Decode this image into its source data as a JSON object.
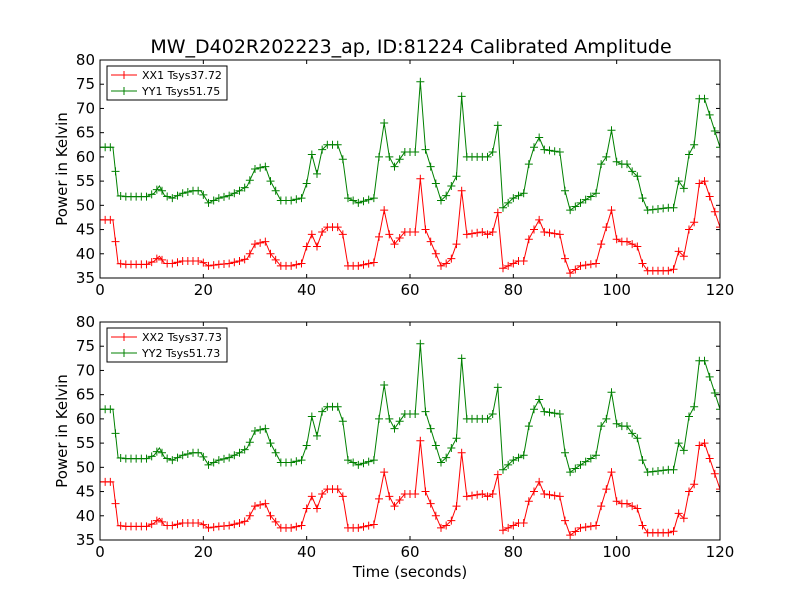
{
  "title": "MW_D402R202223_ap, ID:81224 Calibrated Amplitude",
  "chart_data": [
    {
      "type": "line",
      "title": "MW_D402R202223_ap, ID:81224 Calibrated Amplitude",
      "xlabel": "",
      "ylabel": "Power in Kelvin",
      "xlim": [
        0,
        120
      ],
      "ylim": [
        35,
        80
      ],
      "xticks": [
        "0",
        "20",
        "40",
        "60",
        "80",
        "100",
        "120"
      ],
      "yticks": [
        "35",
        "40",
        "45",
        "50",
        "55",
        "60",
        "65",
        "70",
        "75",
        "80"
      ],
      "grid": false,
      "legend": "upper-left",
      "marker": "+",
      "series": [
        {
          "name": "XX1 Tsys37.72",
          "color": "#ff0000",
          "x": [
            0,
            2.5,
            3.5,
            5,
            9,
            10.5,
            11.5,
            12.5,
            14,
            16,
            18,
            19.5,
            21,
            23,
            25,
            27,
            28.5,
            30,
            32,
            33,
            35,
            37,
            39,
            40,
            41,
            42,
            43,
            44,
            46,
            47,
            48,
            50,
            53,
            54,
            55,
            56,
            57,
            59,
            60,
            61,
            62,
            63,
            66,
            67,
            68,
            69,
            70,
            71,
            74,
            75,
            76,
            77,
            78,
            80,
            81,
            82,
            83,
            84,
            85,
            86,
            89,
            90,
            91,
            93,
            96,
            97,
            98,
            99,
            100,
            101,
            102,
            103,
            104,
            105,
            106,
            110,
            111,
            112,
            113,
            114,
            115,
            116,
            117,
            120
          ],
          "y": [
            47,
            47,
            38,
            37.8,
            37.8,
            38.5,
            39.5,
            38,
            38,
            38.5,
            38.5,
            38.5,
            37.5,
            37.8,
            38,
            38.5,
            39,
            42,
            42.5,
            40,
            37.5,
            37.5,
            38,
            41.5,
            44,
            41.5,
            44.5,
            45.5,
            45.5,
            44,
            37.5,
            37.5,
            38.2,
            43.5,
            49,
            44,
            42,
            44.5,
            44.5,
            44.5,
            55.5,
            45,
            37.5,
            38,
            39,
            42,
            53,
            44,
            44.5,
            44,
            44.5,
            48.5,
            37,
            38,
            38.5,
            38.5,
            43,
            45,
            47,
            44.5,
            44,
            39,
            36,
            37.5,
            38,
            42,
            45.5,
            49,
            43,
            42.5,
            42.5,
            42,
            41.5,
            38,
            36.5,
            36.5,
            36.8,
            40.5,
            39.5,
            45,
            46.5,
            54.5,
            55,
            45.5
          ]
        },
        {
          "name": "YY1 Tsys51.75",
          "color": "#008000",
          "x": [
            0,
            2.5,
            3.5,
            5,
            9,
            10.5,
            11.5,
            12.5,
            14,
            16,
            18,
            19.5,
            21,
            23,
            25,
            27,
            28.5,
            30,
            32,
            33,
            35,
            37,
            39,
            40,
            41,
            42,
            43,
            44,
            46,
            47,
            48,
            50,
            53,
            54,
            55,
            56,
            57,
            59,
            60,
            61,
            62,
            63,
            66,
            67,
            68,
            69,
            70,
            71,
            74,
            75,
            76,
            77,
            78,
            80,
            81,
            82,
            83,
            84,
            85,
            86,
            89,
            90,
            91,
            93,
            96,
            97,
            98,
            99,
            100,
            101,
            102,
            103,
            104,
            105,
            106,
            110,
            111,
            112,
            113,
            114,
            115,
            116,
            117,
            120
          ],
          "y": [
            62,
            62,
            52,
            51.8,
            51.8,
            52.5,
            54,
            52,
            51.5,
            52.5,
            53,
            53,
            50.5,
            51.5,
            52,
            53,
            54,
            57.5,
            58,
            55,
            51,
            51,
            51.5,
            54.5,
            60.5,
            56.5,
            61.5,
            62.5,
            62.5,
            59.5,
            51.5,
            50.5,
            51.5,
            60,
            67,
            60,
            58,
            61,
            61,
            61,
            75.5,
            61.5,
            51,
            52,
            54,
            56,
            72.5,
            60,
            60,
            60,
            61,
            66.5,
            49.5,
            51.5,
            52,
            52.5,
            58.5,
            62,
            64,
            61.5,
            61,
            53,
            49,
            50.5,
            52.5,
            58.5,
            60,
            65.5,
            59,
            58.5,
            58.5,
            57,
            56,
            51.5,
            49,
            49.5,
            49.5,
            55,
            53.5,
            60.5,
            62.5,
            72,
            72,
            62
          ]
        }
      ]
    },
    {
      "type": "line",
      "title": "",
      "xlabel": "Time (seconds)",
      "ylabel": "Power in Kelvin",
      "xlim": [
        0,
        120
      ],
      "ylim": [
        35,
        80
      ],
      "xticks": [
        "0",
        "20",
        "40",
        "60",
        "80",
        "100",
        "120"
      ],
      "yticks": [
        "35",
        "40",
        "45",
        "50",
        "55",
        "60",
        "65",
        "70",
        "75",
        "80"
      ],
      "grid": false,
      "legend": "upper-left",
      "marker": "+",
      "series": [
        {
          "name": "XX2 Tsys37.73",
          "color": "#ff0000",
          "x": [
            0,
            2.5,
            3.5,
            5,
            9,
            10.5,
            11.5,
            12.5,
            14,
            16,
            18,
            19.5,
            21,
            23,
            25,
            27,
            28.5,
            30,
            32,
            33,
            35,
            37,
            39,
            40,
            41,
            42,
            43,
            44,
            46,
            47,
            48,
            50,
            53,
            54,
            55,
            56,
            57,
            59,
            60,
            61,
            62,
            63,
            66,
            67,
            68,
            69,
            70,
            71,
            74,
            75,
            76,
            77,
            78,
            80,
            81,
            82,
            83,
            84,
            85,
            86,
            89,
            90,
            91,
            93,
            96,
            97,
            98,
            99,
            100,
            101,
            102,
            103,
            104,
            105,
            106,
            110,
            111,
            112,
            113,
            114,
            115,
            116,
            117,
            120
          ],
          "y": [
            47,
            47,
            38,
            37.8,
            37.8,
            38.5,
            39.5,
            38,
            38,
            38.5,
            38.5,
            38.5,
            37.5,
            37.8,
            38,
            38.5,
            39,
            42,
            42.5,
            40,
            37.5,
            37.5,
            38,
            41.5,
            44,
            41.5,
            44.5,
            45.5,
            45.5,
            44,
            37.5,
            37.5,
            38.2,
            43.5,
            49,
            44,
            42,
            44.5,
            44.5,
            44.5,
            55.5,
            45,
            37.5,
            38,
            39,
            42,
            53,
            44,
            44.5,
            44,
            44.5,
            48.5,
            37,
            38,
            38.5,
            38.5,
            43,
            45,
            47,
            44.5,
            44,
            39,
            36,
            37.5,
            38,
            42,
            45.5,
            49,
            43,
            42.5,
            42.5,
            42,
            41.5,
            38,
            36.5,
            36.5,
            36.8,
            40.5,
            39.5,
            45,
            46.5,
            54.5,
            55,
            45.5
          ]
        },
        {
          "name": "YY2 Tsys51.73",
          "color": "#008000",
          "x": [
            0,
            2.5,
            3.5,
            5,
            9,
            10.5,
            11.5,
            12.5,
            14,
            16,
            18,
            19.5,
            21,
            23,
            25,
            27,
            28.5,
            30,
            32,
            33,
            35,
            37,
            39,
            40,
            41,
            42,
            43,
            44,
            46,
            47,
            48,
            50,
            53,
            54,
            55,
            56,
            57,
            59,
            60,
            61,
            62,
            63,
            66,
            67,
            68,
            69,
            70,
            71,
            74,
            75,
            76,
            77,
            78,
            80,
            81,
            82,
            83,
            84,
            85,
            86,
            89,
            90,
            91,
            93,
            96,
            97,
            98,
            99,
            100,
            101,
            102,
            103,
            104,
            105,
            106,
            110,
            111,
            112,
            113,
            114,
            115,
            116,
            117,
            120
          ],
          "y": [
            62,
            62,
            52,
            51.8,
            51.8,
            52.5,
            54,
            52,
            51.5,
            52.5,
            53,
            53,
            50.5,
            51.5,
            52,
            53,
            54,
            57.5,
            58,
            55,
            51,
            51,
            51.5,
            54.5,
            60.5,
            56.5,
            61.5,
            62.5,
            62.5,
            59.5,
            51.5,
            50.5,
            51.5,
            60,
            67,
            60,
            58,
            61,
            61,
            61,
            75.5,
            61.5,
            51,
            52,
            54,
            56,
            72.5,
            60,
            60,
            60,
            61,
            66.5,
            49.5,
            51.5,
            52,
            52.5,
            58.5,
            62,
            64,
            61.5,
            61,
            53,
            49,
            50.5,
            52.5,
            58.5,
            60,
            65.5,
            59,
            58.5,
            58.5,
            57,
            56,
            51.5,
            49,
            49.5,
            49.5,
            55,
            53.5,
            60.5,
            62.5,
            72,
            72,
            62
          ]
        }
      ]
    }
  ]
}
